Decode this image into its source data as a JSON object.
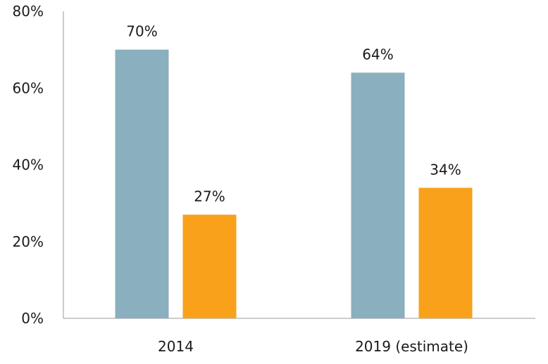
{
  "chart_data": {
    "type": "bar",
    "title": "",
    "xlabel": "",
    "ylabel": "",
    "categories": [
      "2014",
      "2019 (estimate)"
    ],
    "series": [
      {
        "values": [
          70,
          64
        ],
        "data_labels": [
          "70%",
          "64%"
        ],
        "color": "#8aafbf"
      },
      {
        "values": [
          27,
          34
        ],
        "data_labels": [
          "27%",
          "34%"
        ],
        "color": "#f9a11b"
      }
    ],
    "ylim": [
      0,
      80
    ],
    "y_ticks": [
      0,
      20,
      40,
      60,
      80
    ],
    "y_tick_labels": [
      "0%",
      "20%",
      "40%",
      "60%",
      "80%"
    ],
    "grid": false,
    "legend": "none",
    "axis_color": "#999999"
  }
}
